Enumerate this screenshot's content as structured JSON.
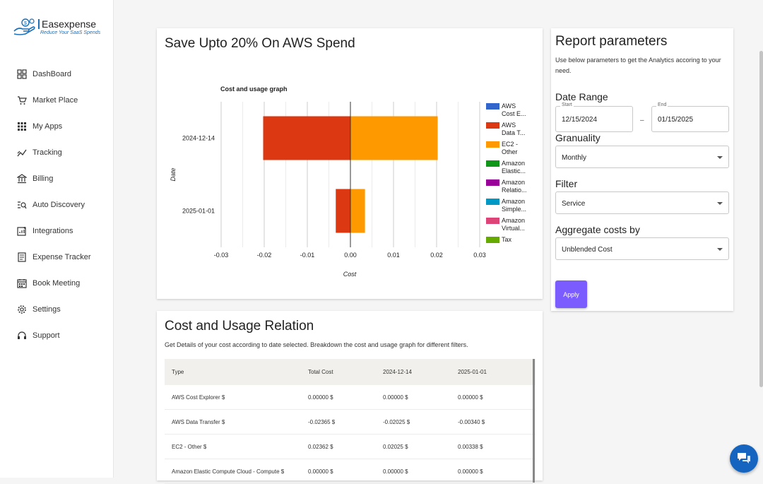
{
  "brand": {
    "name": "Easexpense",
    "tagline": "Reduce Your SaaS Spends"
  },
  "sidebar": {
    "items": [
      {
        "label": "DashBoard",
        "icon": "dashboard-icon"
      },
      {
        "label": "Market Place",
        "icon": "cart-icon"
      },
      {
        "label": "My Apps",
        "icon": "apps-grid-icon"
      },
      {
        "label": "Tracking",
        "icon": "tracking-icon"
      },
      {
        "label": "Billing",
        "icon": "bank-icon"
      },
      {
        "label": "Auto Discovery",
        "icon": "discovery-icon"
      },
      {
        "label": "Integrations",
        "icon": "integrations-icon"
      },
      {
        "label": "Expense Tracker",
        "icon": "document-icon"
      },
      {
        "label": "Book Meeting",
        "icon": "calendar-icon"
      },
      {
        "label": "Settings",
        "icon": "gear-icon"
      },
      {
        "label": "Support",
        "icon": "headset-icon"
      }
    ]
  },
  "chart_card": {
    "title": "Save Upto 20% On AWS Spend"
  },
  "chart_data": {
    "type": "bar",
    "orientation": "horizontal",
    "stacked": true,
    "title": "Cost and usage graph",
    "xlabel": "Cost",
    "ylabel": "Date",
    "xlim": [
      -0.03,
      0.03
    ],
    "xticks": [
      "-0.03",
      "-0.02",
      "-0.01",
      "0.00",
      "0.01",
      "0.02",
      "0.03"
    ],
    "categories": [
      "2024-12-14",
      "2025-01-01"
    ],
    "series": [
      {
        "name": "AWS Cost E...",
        "color": "#3366cc",
        "values": [
          0,
          0
        ]
      },
      {
        "name": "AWS Data T...",
        "color": "#dc3912",
        "values": [
          -0.02025,
          -0.0034
        ]
      },
      {
        "name": "EC2 - Other",
        "color": "#ff9900",
        "values": [
          0.02025,
          0.00338
        ]
      },
      {
        "name": "Amazon Elastic...",
        "color": "#109618",
        "values": [
          0,
          0
        ]
      },
      {
        "name": "Amazon Relatio...",
        "color": "#990099",
        "values": [
          0,
          0
        ]
      },
      {
        "name": "Amazon Simple...",
        "color": "#0099c6",
        "values": [
          0,
          0
        ]
      },
      {
        "name": "Amazon Virtual...",
        "color": "#dd4477",
        "values": [
          0,
          0
        ]
      },
      {
        "name": "Tax",
        "color": "#66aa00",
        "values": [
          0,
          0
        ]
      }
    ],
    "legend": "right",
    "grid": true
  },
  "legend_lines": [
    [
      "AWS",
      "Cost E..."
    ],
    [
      "AWS",
      "Data T..."
    ],
    [
      "EC2 -",
      "Other"
    ],
    [
      "Amazon",
      "Elastic..."
    ],
    [
      "Amazon",
      "Relatio..."
    ],
    [
      "Amazon",
      "Simple..."
    ],
    [
      "Amazon",
      "Virtual..."
    ],
    [
      "Tax"
    ]
  ],
  "params": {
    "title": "Report parameters",
    "description": "Use below parameters to get the Analytics accoring to your need.",
    "date_range_label": "Date Range",
    "start_label": "Start",
    "start_value": "12/15/2024",
    "separator": "–",
    "end_label": "End",
    "end_value": "01/15/2025",
    "granuality_label": "Granuality",
    "granuality_value": "Monthly",
    "filter_label": "Filter",
    "filter_value": "Service",
    "aggregate_label": "Aggregate costs by",
    "aggregate_value": "Unblended Cost",
    "apply_label": "Apply",
    "accent": "#7b5cff"
  },
  "relation": {
    "title": "Cost and Usage Relation",
    "subtitle": "Get Details of your cost according to date selected. Breakdown the cost and usage graph for different filters.",
    "headers": [
      "Type",
      "Total Cost",
      "2024-12-14",
      "2025-01-01"
    ],
    "rows": [
      [
        "AWS Cost Explorer $",
        "0.00000 $",
        "0.00000 $",
        "0.00000 $"
      ],
      [
        "AWS Data Transfer $",
        "-0.02365 $",
        "-0.02025 $",
        "-0.00340 $"
      ],
      [
        "EC2 - Other $",
        "0.02362 $",
        "0.02025 $",
        "0.00338 $"
      ],
      [
        "Amazon Elastic Compute Cloud - Compute $",
        "0.00000 $",
        "0.00000 $",
        "0.00000 $"
      ]
    ]
  }
}
